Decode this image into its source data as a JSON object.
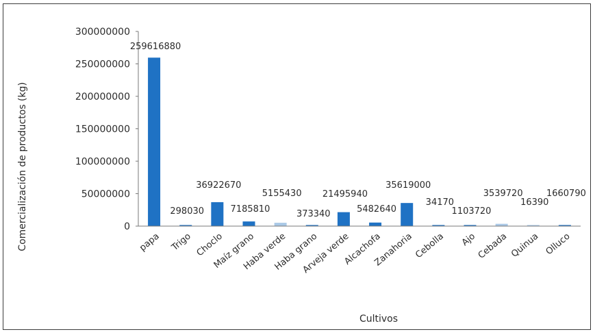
{
  "chart_data": {
    "type": "bar",
    "title": "",
    "xlabel": "Cultivos",
    "ylabel": "Comercialización de productos (kg)",
    "ylim": [
      0,
      300000000
    ],
    "yticks": [
      "0",
      "50000000",
      "100000000",
      "150000000",
      "200000000",
      "250000000",
      "300000000"
    ],
    "categories": [
      "papa",
      "Trigo",
      "Choclo",
      "Maíz grano",
      "Haba verde",
      "Haba grano",
      "Arveja verde",
      "Alcachofa",
      "Zanahoria",
      "Cebolla",
      "Ajo",
      "Cebada",
      "Quinua",
      "Olluco"
    ],
    "values": [
      259616880,
      298030,
      36922670,
      7185810,
      5155430,
      373340,
      21495940,
      5482640,
      35619000,
      34170,
      1103720,
      3539720,
      16390,
      1660790
    ],
    "data_labels": [
      "259616880",
      "298030",
      "36922670",
      "7185810",
      "5155430",
      "373340",
      "21495940",
      "5482640",
      "35619000",
      "34170",
      "1103720",
      "3539720",
      "16390",
      "1660790"
    ],
    "grid": false,
    "bar_color": "#1f72c4",
    "light_bar_color": "#a9c8e6"
  }
}
